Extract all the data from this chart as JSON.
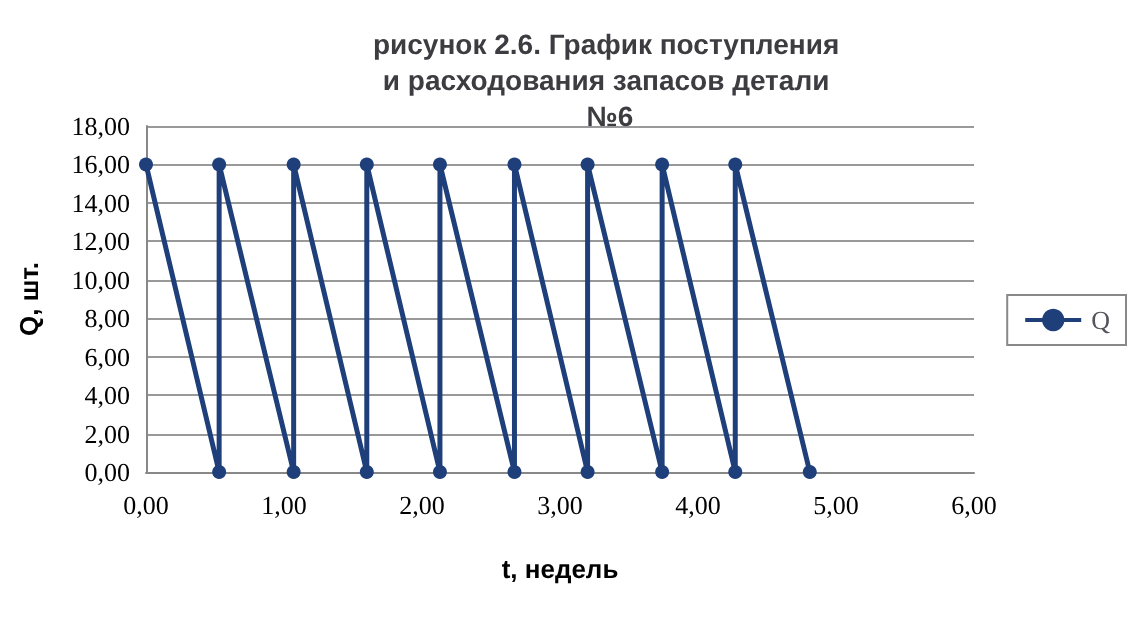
{
  "chart_data": {
    "type": "line",
    "title": "рисунок 2.6. График поступления и расходования запасов детали №6",
    "xlabel": "t, недель",
    "ylabel": "Q, шт.",
    "x": [
      0,
      0.53,
      0.53,
      1.07,
      1.07,
      1.6,
      1.6,
      2.13,
      2.13,
      2.67,
      2.67,
      3.2,
      3.2,
      3.74,
      3.74,
      4.27,
      4.27,
      4.81
    ],
    "series": [
      {
        "name": "Q",
        "color": "#1f3f7a",
        "values": [
          16,
          0,
          16,
          0,
          16,
          0,
          16,
          0,
          16,
          0,
          16,
          0,
          16,
          0,
          16,
          0,
          16,
          0
        ]
      }
    ],
    "xlim": [
      0,
      6
    ],
    "xticks": [
      {
        "value": 0,
        "label": "0,00"
      },
      {
        "value": 1,
        "label": "1,00"
      },
      {
        "value": 2,
        "label": "2,00"
      },
      {
        "value": 3,
        "label": "3,00"
      },
      {
        "value": 4,
        "label": "4,00"
      },
      {
        "value": 5,
        "label": "5,00"
      },
      {
        "value": 6,
        "label": "6,00"
      }
    ],
    "ylim": [
      0,
      18
    ],
    "yticks": [
      {
        "value": 0,
        "label": "0,00"
      },
      {
        "value": 2,
        "label": "2,00"
      },
      {
        "value": 4,
        "label": "4,00"
      },
      {
        "value": 6,
        "label": "6,00"
      },
      {
        "value": 8,
        "label": "8,00"
      },
      {
        "value": 10,
        "label": "10,00"
      },
      {
        "value": 12,
        "label": "12,00"
      },
      {
        "value": 14,
        "label": "14,00"
      },
      {
        "value": 16,
        "label": "16,00"
      },
      {
        "value": 18,
        "label": "18,00"
      }
    ],
    "grid": "y",
    "legend": "right",
    "marker": "circle",
    "line_style": "solid"
  }
}
